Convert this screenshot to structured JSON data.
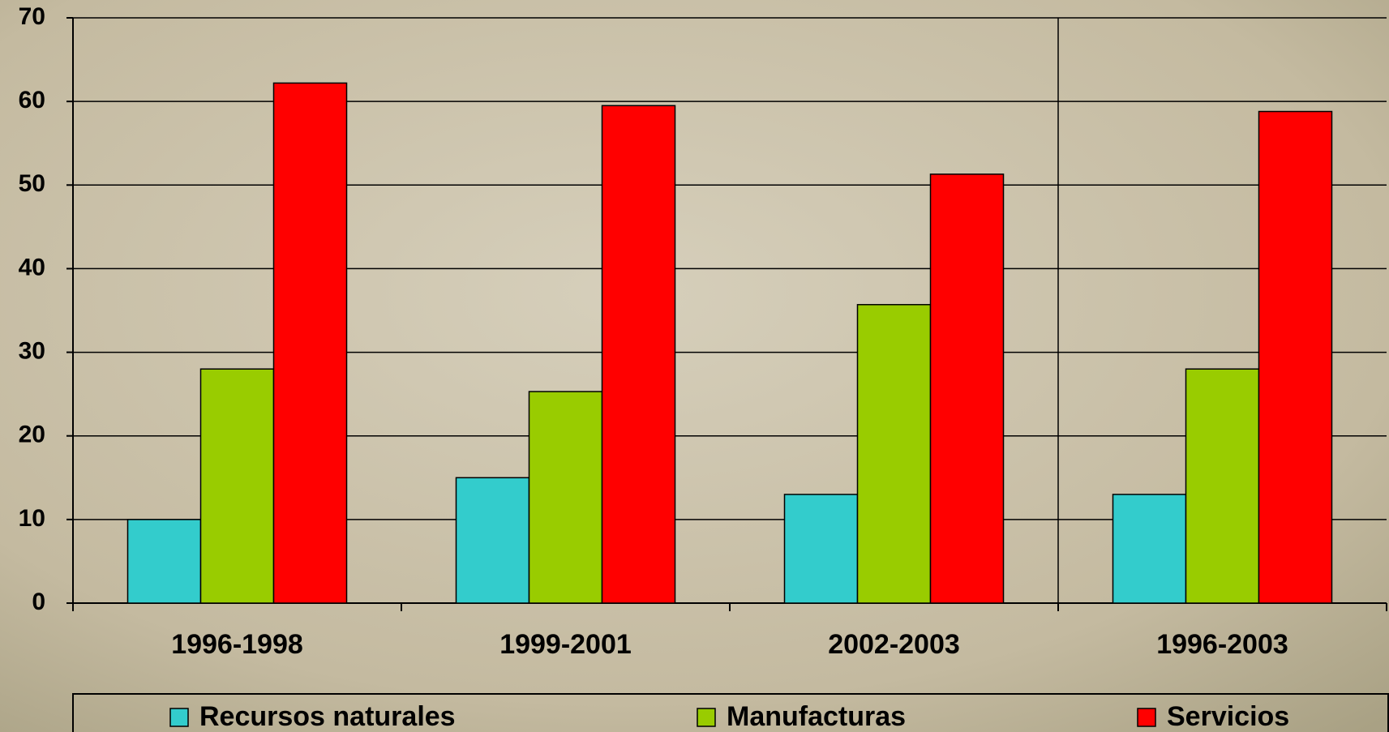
{
  "chart_data": {
    "type": "bar",
    "categories": [
      "1996-1998",
      "1999-2001",
      "2002-2003",
      "1996-2003"
    ],
    "series": [
      {
        "name": "Recursos naturales",
        "color": "#33cccc",
        "values": [
          10,
          15,
          13,
          13
        ]
      },
      {
        "name": "Manufacturas",
        "color": "#99cc00",
        "values": [
          28,
          25.3,
          35.7,
          28
        ]
      },
      {
        "name": "Servicios",
        "color": "#ff0000",
        "values": [
          62.2,
          59.5,
          51.3,
          58.8
        ]
      }
    ],
    "ylim": [
      0,
      70
    ],
    "yticks": [
      0,
      10,
      20,
      30,
      40,
      50,
      60,
      70
    ],
    "grid": true,
    "legend": "bottom"
  }
}
